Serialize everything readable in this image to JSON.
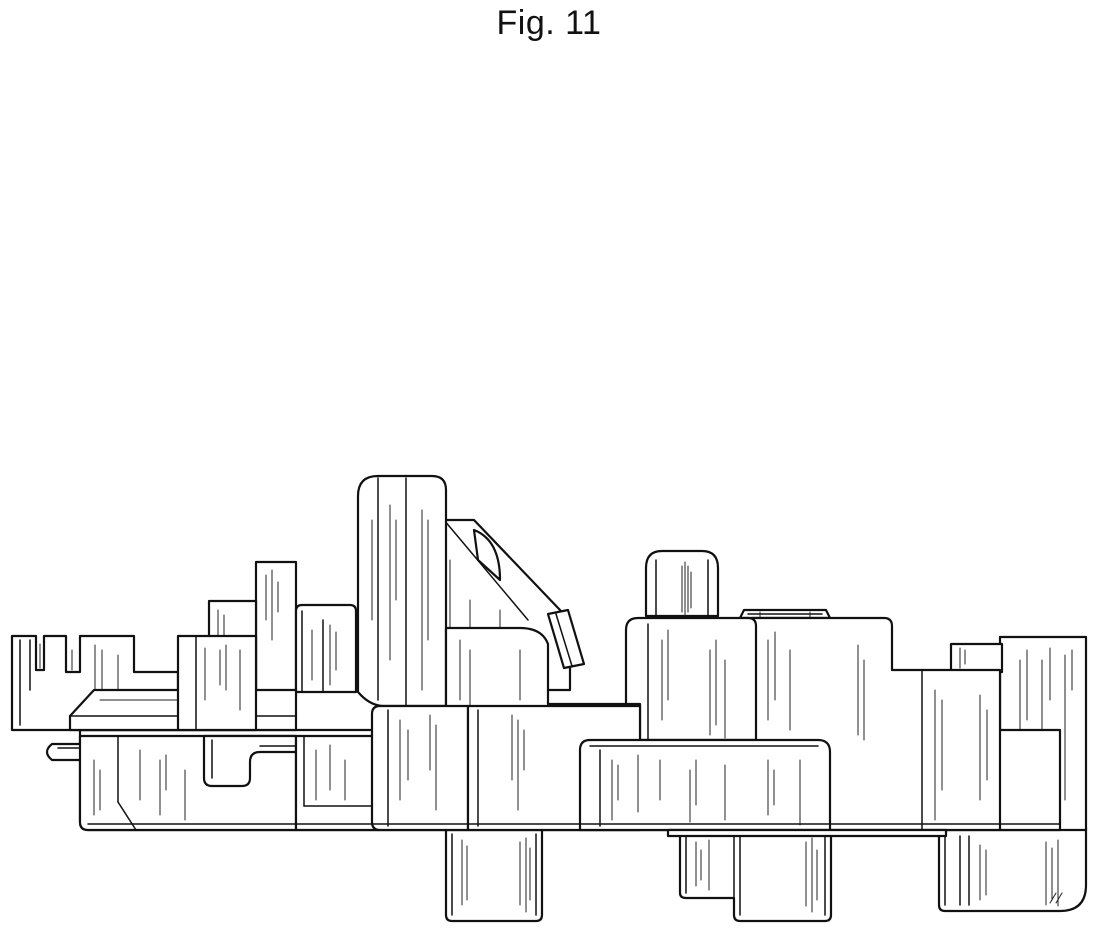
{
  "figure": {
    "title": "Fig. 11"
  },
  "colors": {
    "background": "#ffffff",
    "line": "#111111"
  }
}
